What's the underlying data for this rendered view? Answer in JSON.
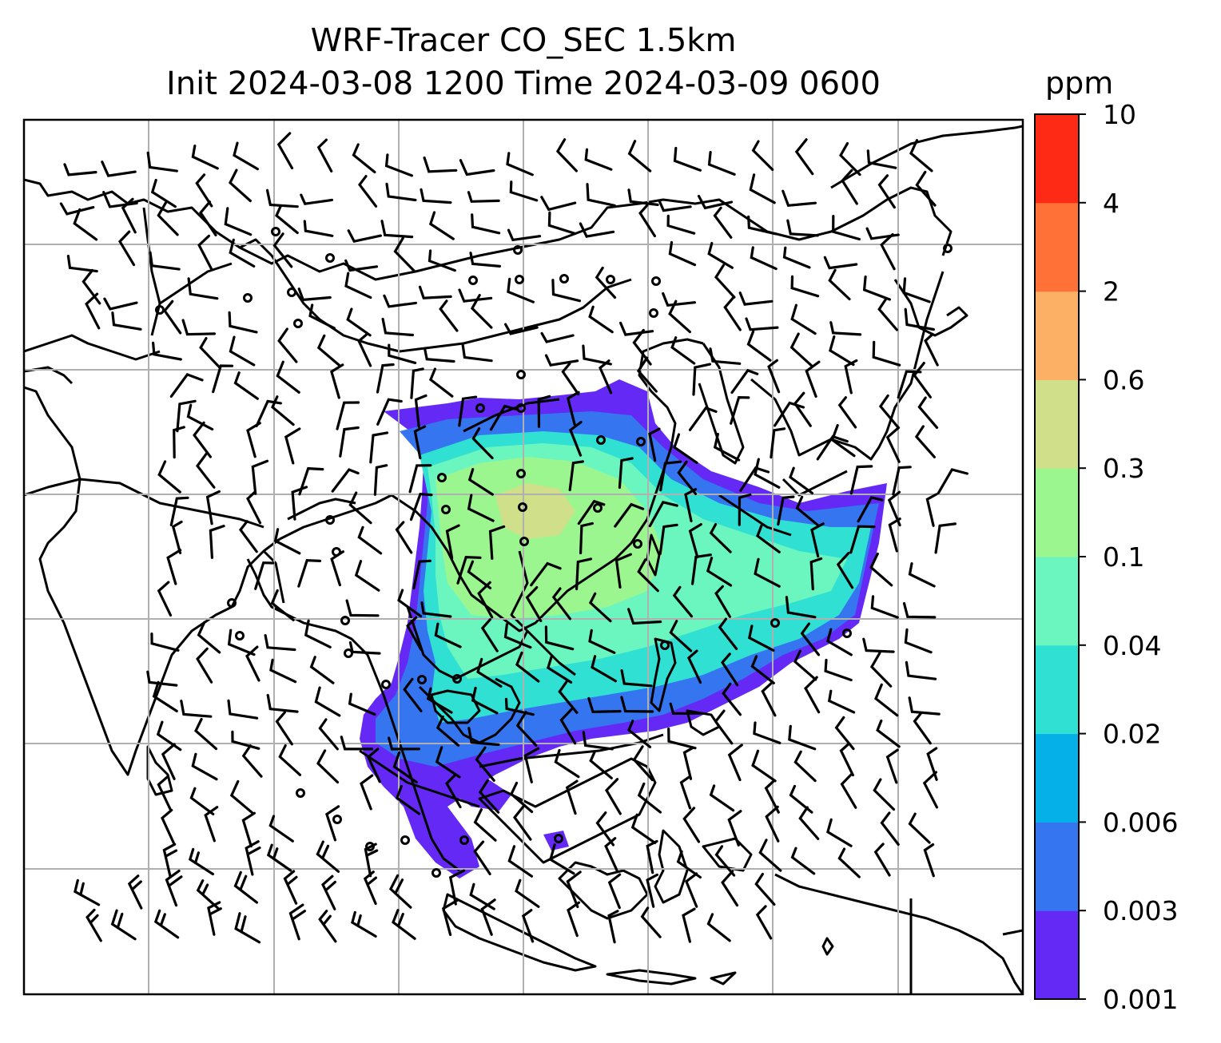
{
  "title": {
    "line1": "WRF-Tracer CO_SEC 1.5km",
    "line2": "Init 2024-03-08 1200 Time 2024-03-09 0600"
  },
  "colorbar": {
    "unit": "ppm",
    "levels": [
      "0.001",
      "0.003",
      "0.006",
      "0.02",
      "0.04",
      "0.1",
      "0.3",
      "0.6",
      "2",
      "4",
      "10"
    ],
    "colors": [
      "#6529f5",
      "#3575f0",
      "#05b0e8",
      "#30e0d2",
      "#6cf6bf",
      "#9cf690",
      "#d0e08a",
      "#fbb065",
      "#ff7137",
      "#ff2a16"
    ]
  },
  "map": {
    "land_outline_color": "#000000",
    "grid_color": "#b0b0b0",
    "plume_colors": {
      "outer": "#6529f5",
      "low": "#3575f0",
      "mid": "#30e0d2",
      "high": "#6cf6bf",
      "core": "#9cf690",
      "peak": "#d0e08a"
    }
  }
}
